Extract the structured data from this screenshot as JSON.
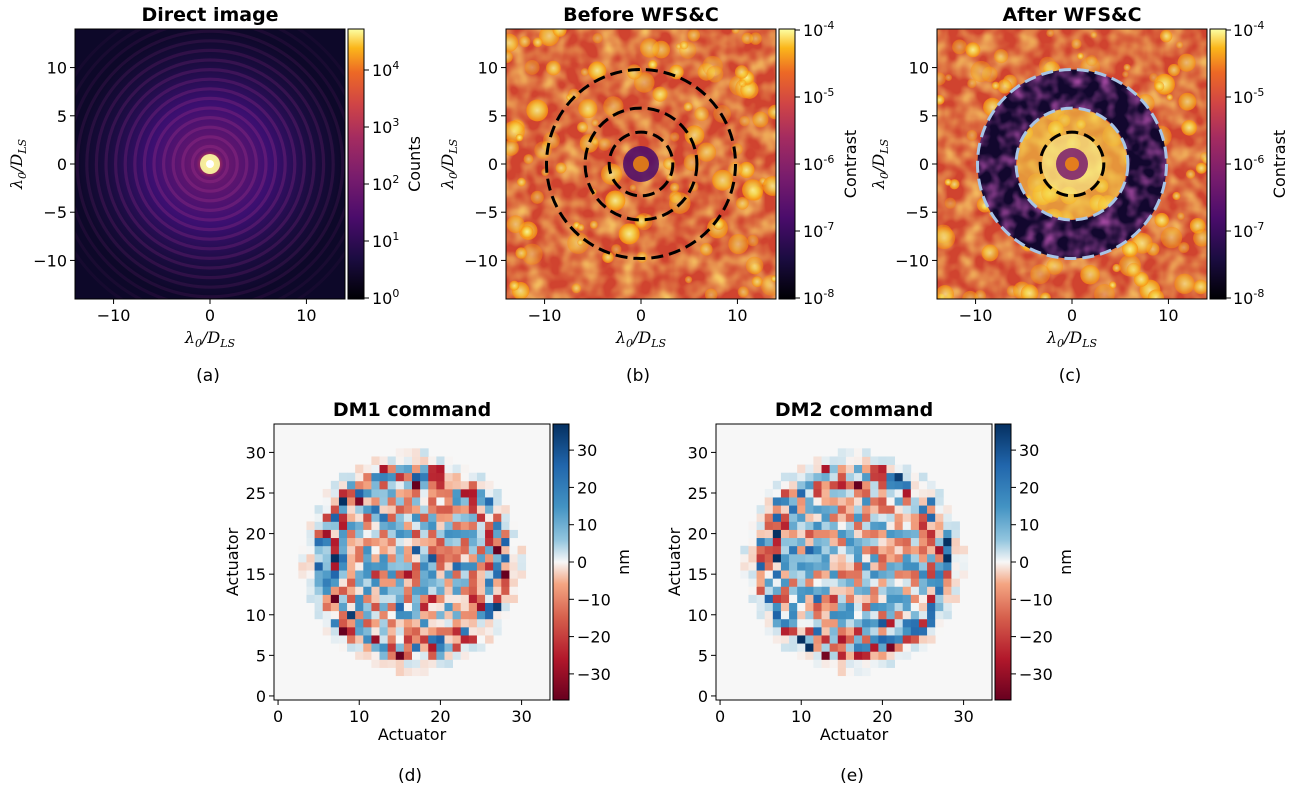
{
  "chart_data": [
    {
      "type": "heatmap",
      "panel": "(a)",
      "title": "Direct image",
      "xlabel": "λ0/DLS",
      "ylabel": "λ0/DLS",
      "xlim": [
        -14,
        14
      ],
      "ylim": [
        -14,
        14
      ],
      "xticks": [
        "−10",
        "0",
        "10"
      ],
      "yticks": [
        "10",
        "5",
        "0",
        "−5",
        "−10"
      ],
      "colorbar": {
        "label": "Counts",
        "scale": "log",
        "range": [
          1,
          50000
        ],
        "ticks": [
          "10^4",
          "10^3",
          "10^2",
          "10^1",
          "10^0"
        ],
        "colormap": "inferno"
      }
    },
    {
      "type": "heatmap",
      "panel": "(b)",
      "title": "Before WFS&C",
      "xlabel": "λ0/DLS",
      "ylabel": "λ0/DLS",
      "xlim": [
        -14,
        14
      ],
      "ylim": [
        -14,
        14
      ],
      "xticks": [
        "−10",
        "0",
        "10"
      ],
      "yticks": [
        "10",
        "5",
        "0",
        "−5",
        "−10"
      ],
      "circle_radii": [
        3.3,
        5.8,
        9.8
      ],
      "circle_color": "#000000",
      "colorbar": {
        "label": "Contrast",
        "scale": "log",
        "range": [
          1e-08,
          0.0001
        ],
        "ticks": [
          "10-4",
          "10-5",
          "10-6",
          "10-7",
          "10-8"
        ],
        "colormap": "inferno"
      }
    },
    {
      "type": "heatmap",
      "panel": "(c)",
      "title": "After WFS&C",
      "xlabel": "λ0/DLS",
      "ylabel": "λ0/DLS",
      "xlim": [
        -14,
        14
      ],
      "ylim": [
        -14,
        14
      ],
      "xticks": [
        "−10",
        "0",
        "10"
      ],
      "yticks": [
        "10",
        "5",
        "0",
        "−5",
        "−10"
      ],
      "circle_radii": [
        3.3,
        5.8,
        9.8
      ],
      "circle_colors": [
        "#000000",
        "#a8c4e6",
        "#a8c4e6"
      ],
      "dark_hole": [
        5.8,
        9.8
      ],
      "colorbar": {
        "label": "Contrast",
        "scale": "log",
        "range": [
          1e-08,
          0.0001
        ],
        "ticks": [
          "10-4",
          "10-5",
          "10-6",
          "10-7",
          "10-8"
        ],
        "colormap": "inferno"
      }
    },
    {
      "type": "heatmap",
      "panel": "(d)",
      "title": "DM1 command",
      "xlabel": "Actuator",
      "ylabel": "Actuator",
      "grid_size": 34,
      "xlim": [
        0,
        33
      ],
      "ylim": [
        0,
        33
      ],
      "xticks": [
        "0",
        "10",
        "20",
        "30"
      ],
      "yticks": [
        "30",
        "25",
        "20",
        "15",
        "10",
        "5",
        "0"
      ],
      "colorbar": {
        "label": "nm",
        "range": [
          -37,
          37
        ],
        "ticks": [
          "30",
          "20",
          "10",
          "0",
          "−10",
          "−20",
          "−30"
        ],
        "colormap": "RdBu"
      }
    },
    {
      "type": "heatmap",
      "panel": "(e)",
      "title": "DM2 command",
      "xlabel": "Actuator",
      "ylabel": "Actuator",
      "grid_size": 34,
      "xlim": [
        0,
        33
      ],
      "ylim": [
        0,
        33
      ],
      "xticks": [
        "0",
        "10",
        "20",
        "30"
      ],
      "yticks": [
        "30",
        "25",
        "20",
        "15",
        "10",
        "5",
        "0"
      ],
      "colorbar": {
        "label": "nm",
        "range": [
          -37,
          37
        ],
        "ticks": [
          "30",
          "20",
          "10",
          "0",
          "−10",
          "−20",
          "−30"
        ],
        "colormap": "RdBu"
      }
    }
  ],
  "captions": [
    "(a)",
    "(b)",
    "(c)",
    "(d)",
    "(e)"
  ],
  "math": {
    "lambda": "λ",
    "sub0": "0",
    "slash": "/D",
    "subLS": "LS"
  },
  "sup": {
    "p4": "4",
    "p3": "3",
    "p2": "2",
    "p1": "1",
    "p0": "0",
    "m4": "-4",
    "m5": "-5",
    "m6": "-6",
    "m7": "-7",
    "m8": "-8"
  },
  "tick_base": "10"
}
